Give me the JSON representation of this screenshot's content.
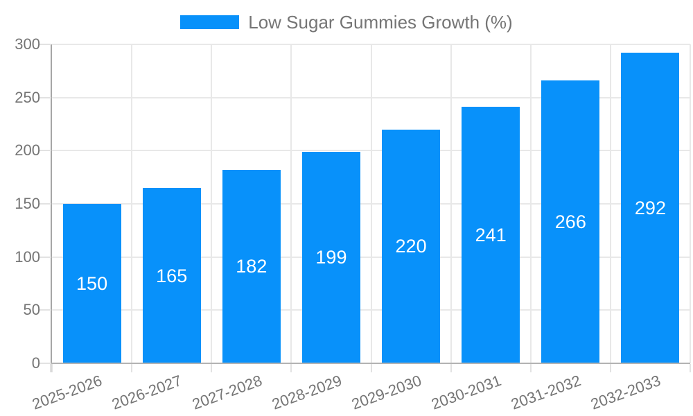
{
  "legend": {
    "label": "Low Sugar Gummies Growth (%)"
  },
  "chart_data": {
    "type": "bar",
    "title": "Low Sugar Gummies Growth (%)",
    "series_name": "Low Sugar Gummies Growth (%)",
    "categories": [
      "2025-2026",
      "2026-2027",
      "2027-2028",
      "2028-2029",
      "2029-2030",
      "2030-2031",
      "2031-2032",
      "2032-2033"
    ],
    "values": [
      150,
      165,
      182,
      199,
      220,
      241,
      266,
      292
    ],
    "xlabel": "",
    "ylabel": "",
    "ylim": [
      0,
      300
    ],
    "yticks": [
      0,
      50,
      100,
      150,
      200,
      250,
      300
    ],
    "grid": true,
    "legend_position": "top-center",
    "value_labels": "inside-center",
    "x_label_rotation_deg": -20,
    "colors": {
      "bar": "#0891fa",
      "value_label": "#ffffff",
      "axis_text": "#757575",
      "legend_text": "#757575",
      "gridline": "#e8e8e8",
      "axis_line": "#a6a6a6",
      "background": "#ffffff"
    }
  }
}
